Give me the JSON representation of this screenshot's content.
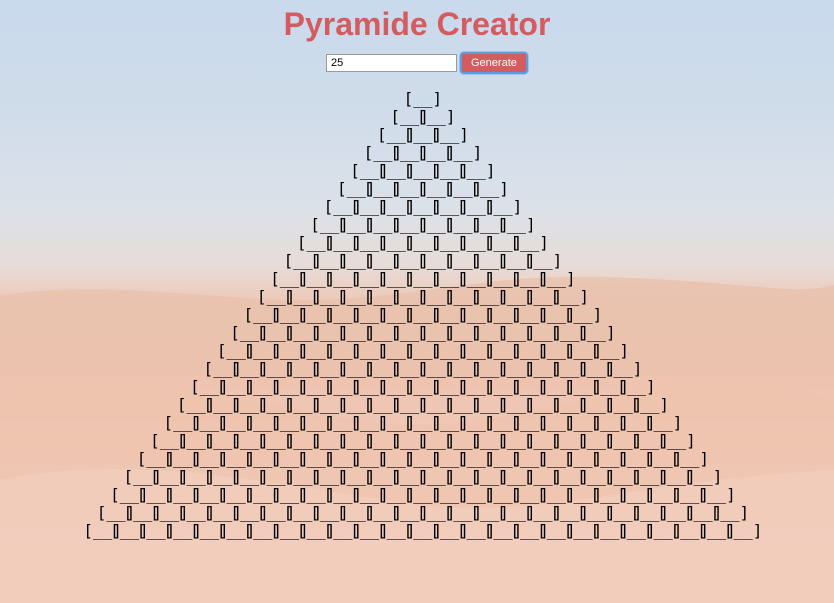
{
  "header": {
    "title": "Pyramide Creator"
  },
  "controls": {
    "input_value": "25",
    "button_label": "Generate"
  },
  "pyramid": {
    "rows": 25,
    "brick_glyph": "[__]"
  }
}
